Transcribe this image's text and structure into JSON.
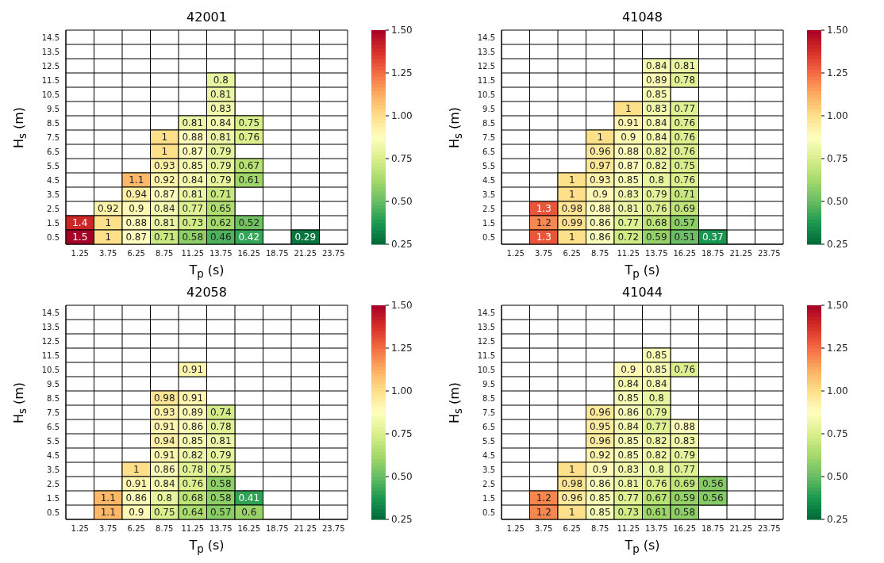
{
  "chart_data": [
    {
      "type": "heatmap",
      "title": "42001",
      "xlabel": "T$_{p}$ (s)",
      "ylabel": "H$_{s}$ (m)",
      "categories": [
        "1.25",
        "3.75",
        "6.25",
        "8.75",
        "11.25",
        "13.75",
        "16.25",
        "18.75",
        "21.25",
        "23.75"
      ],
      "y_categories": [
        "14.5",
        "13.5",
        "12.5",
        "11.5",
        "10.5",
        "9.5",
        "8.5",
        "7.5",
        "6.5",
        "5.5",
        "4.5",
        "3.5",
        "2.5",
        "1.5",
        "0.5"
      ],
      "clim": [
        0.25,
        1.5
      ],
      "cticks": [
        0.25,
        {
          "value": 0.5,
          "label": "0.50"
        },
        0.75,
        {
          "value": 1,
          "label": "1.00"
        },
        1.25,
        {
          "value": 1.5,
          "label": "1.50"
        }
      ],
      "data_labels": true,
      "cells": [
        [
          null,
          null,
          null,
          null,
          null,
          null,
          null,
          null,
          null,
          null
        ],
        [
          null,
          null,
          null,
          null,
          null,
          null,
          null,
          null,
          null,
          null
        ],
        [
          null,
          null,
          null,
          null,
          null,
          null,
          null,
          null,
          null,
          null
        ],
        [
          null,
          null,
          null,
          null,
          null,
          0.8,
          null,
          null,
          null,
          null
        ],
        [
          null,
          null,
          null,
          null,
          null,
          0.81,
          null,
          null,
          null,
          null
        ],
        [
          null,
          null,
          null,
          null,
          null,
          0.83,
          null,
          null,
          null,
          null
        ],
        [
          null,
          null,
          null,
          null,
          0.81,
          0.84,
          0.75,
          null,
          null,
          null
        ],
        [
          null,
          null,
          null,
          1,
          0.88,
          0.81,
          0.76,
          null,
          null,
          null
        ],
        [
          null,
          null,
          null,
          1,
          0.87,
          0.79,
          null,
          null,
          null,
          null
        ],
        [
          null,
          null,
          null,
          0.93,
          0.85,
          0.79,
          0.67,
          null,
          null,
          null
        ],
        [
          null,
          null,
          1.1,
          0.92,
          0.84,
          0.79,
          0.61,
          null,
          null,
          null
        ],
        [
          null,
          null,
          0.94,
          0.87,
          0.81,
          0.71,
          null,
          null,
          null,
          null
        ],
        [
          null,
          0.92,
          0.9,
          0.84,
          0.77,
          0.65,
          null,
          null,
          null,
          null
        ],
        [
          1.4,
          1,
          0.88,
          0.81,
          0.73,
          0.62,
          0.52,
          null,
          null,
          null
        ],
        [
          1.5,
          1,
          0.87,
          0.71,
          0.58,
          0.46,
          0.42,
          null,
          0.29,
          null
        ]
      ]
    },
    {
      "type": "heatmap",
      "title": "41048",
      "xlabel": "T$_{p}$ (s)",
      "ylabel": "H$_{s}$ (m)",
      "categories": [
        "1.25",
        "3.75",
        "6.25",
        "8.75",
        "11.25",
        "13.75",
        "16.25",
        "18.75",
        "21.25",
        "23.75"
      ],
      "y_categories": [
        "14.5",
        "13.5",
        "12.5",
        "11.5",
        "10.5",
        "9.5",
        "8.5",
        "7.5",
        "6.5",
        "5.5",
        "4.5",
        "3.5",
        "2.5",
        "1.5",
        "0.5"
      ],
      "clim": [
        0.25,
        1.5
      ],
      "cticks": [
        0.25,
        {
          "value": 0.5,
          "label": "0.50"
        },
        0.75,
        {
          "value": 1,
          "label": "1.00"
        },
        1.25,
        {
          "value": 1.5,
          "label": "1.50"
        }
      ],
      "data_labels": true,
      "cells": [
        [
          null,
          null,
          null,
          null,
          null,
          null,
          null,
          null,
          null,
          null
        ],
        [
          null,
          null,
          null,
          null,
          null,
          null,
          null,
          null,
          null,
          null
        ],
        [
          null,
          null,
          null,
          null,
          null,
          0.84,
          0.81,
          null,
          null,
          null
        ],
        [
          null,
          null,
          null,
          null,
          null,
          0.89,
          0.78,
          null,
          null,
          null
        ],
        [
          null,
          null,
          null,
          null,
          null,
          0.85,
          null,
          null,
          null,
          null
        ],
        [
          null,
          null,
          null,
          null,
          1,
          0.83,
          0.77,
          null,
          null,
          null
        ],
        [
          null,
          null,
          null,
          null,
          0.91,
          0.84,
          0.76,
          null,
          null,
          null
        ],
        [
          null,
          null,
          null,
          1,
          0.9,
          0.84,
          0.76,
          null,
          null,
          null
        ],
        [
          null,
          null,
          null,
          0.96,
          0.88,
          0.82,
          0.76,
          null,
          null,
          null
        ],
        [
          null,
          null,
          null,
          0.97,
          0.87,
          0.82,
          0.75,
          null,
          null,
          null
        ],
        [
          null,
          null,
          1,
          0.93,
          0.85,
          0.8,
          0.76,
          null,
          null,
          null
        ],
        [
          null,
          null,
          1,
          0.9,
          0.83,
          0.79,
          0.71,
          null,
          null,
          null
        ],
        [
          null,
          1.3,
          0.98,
          0.88,
          0.81,
          0.76,
          0.69,
          null,
          null,
          null
        ],
        [
          null,
          1.2,
          0.99,
          0.86,
          0.77,
          0.68,
          0.57,
          null,
          null,
          null
        ],
        [
          null,
          1.3,
          1,
          0.86,
          0.72,
          0.59,
          0.51,
          0.37,
          null,
          null
        ]
      ]
    },
    {
      "type": "heatmap",
      "title": "42058",
      "xlabel": "T$_{p}$ (s)",
      "ylabel": "H$_{s}$ (m)",
      "categories": [
        "1.25",
        "3.75",
        "6.25",
        "8.75",
        "11.25",
        "13.75",
        "16.25",
        "18.75",
        "21.25",
        "23.75"
      ],
      "y_categories": [
        "14.5",
        "13.5",
        "12.5",
        "11.5",
        "10.5",
        "9.5",
        "8.5",
        "7.5",
        "6.5",
        "5.5",
        "4.5",
        "3.5",
        "2.5",
        "1.5",
        "0.5"
      ],
      "clim": [
        0.25,
        1.5
      ],
      "cticks": [
        0.25,
        {
          "value": 0.5,
          "label": "0.50"
        },
        0.75,
        {
          "value": 1,
          "label": "1.00"
        },
        1.25,
        {
          "value": 1.5,
          "label": "1.50"
        }
      ],
      "data_labels": true,
      "cells": [
        [
          null,
          null,
          null,
          null,
          null,
          null,
          null,
          null,
          null,
          null
        ],
        [
          null,
          null,
          null,
          null,
          null,
          null,
          null,
          null,
          null,
          null
        ],
        [
          null,
          null,
          null,
          null,
          null,
          null,
          null,
          null,
          null,
          null
        ],
        [
          null,
          null,
          null,
          null,
          null,
          null,
          null,
          null,
          null,
          null
        ],
        [
          null,
          null,
          null,
          null,
          0.91,
          null,
          null,
          null,
          null,
          null
        ],
        [
          null,
          null,
          null,
          null,
          null,
          null,
          null,
          null,
          null,
          null
        ],
        [
          null,
          null,
          null,
          0.98,
          0.91,
          null,
          null,
          null,
          null,
          null
        ],
        [
          null,
          null,
          null,
          0.93,
          0.89,
          0.74,
          null,
          null,
          null,
          null
        ],
        [
          null,
          null,
          null,
          0.91,
          0.86,
          0.78,
          null,
          null,
          null,
          null
        ],
        [
          null,
          null,
          null,
          0.94,
          0.85,
          0.81,
          null,
          null,
          null,
          null
        ],
        [
          null,
          null,
          null,
          0.91,
          0.82,
          0.79,
          null,
          null,
          null,
          null
        ],
        [
          null,
          null,
          1,
          0.86,
          0.78,
          0.75,
          null,
          null,
          null,
          null
        ],
        [
          null,
          null,
          0.91,
          0.84,
          0.76,
          0.58,
          null,
          null,
          null,
          null
        ],
        [
          null,
          1.1,
          0.86,
          0.8,
          0.68,
          0.58,
          0.41,
          null,
          null,
          null
        ],
        [
          null,
          1.1,
          0.9,
          0.75,
          0.64,
          0.57,
          0.6,
          null,
          null,
          null
        ]
      ]
    },
    {
      "type": "heatmap",
      "title": "41044",
      "xlabel": "T$_{p}$ (s)",
      "ylabel": "H$_{s}$ (m)",
      "categories": [
        "1.25",
        "3.75",
        "6.25",
        "8.75",
        "11.25",
        "13.75",
        "16.25",
        "18.75",
        "21.25",
        "23.75"
      ],
      "y_categories": [
        "14.5",
        "13.5",
        "12.5",
        "11.5",
        "10.5",
        "9.5",
        "8.5",
        "7.5",
        "6.5",
        "5.5",
        "4.5",
        "3.5",
        "2.5",
        "1.5",
        "0.5"
      ],
      "clim": [
        0.25,
        1.5
      ],
      "cticks": [
        0.25,
        {
          "value": 0.5,
          "label": "0.50"
        },
        0.75,
        {
          "value": 1,
          "label": "1.00"
        },
        1.25,
        {
          "value": 1.5,
          "label": "1.50"
        }
      ],
      "data_labels": true,
      "cells": [
        [
          null,
          null,
          null,
          null,
          null,
          null,
          null,
          null,
          null,
          null
        ],
        [
          null,
          null,
          null,
          null,
          null,
          null,
          null,
          null,
          null,
          null
        ],
        [
          null,
          null,
          null,
          null,
          null,
          null,
          null,
          null,
          null,
          null
        ],
        [
          null,
          null,
          null,
          null,
          null,
          0.85,
          null,
          null,
          null,
          null
        ],
        [
          null,
          null,
          null,
          null,
          0.9,
          0.85,
          0.76,
          null,
          null,
          null
        ],
        [
          null,
          null,
          null,
          null,
          0.84,
          0.84,
          null,
          null,
          null,
          null
        ],
        [
          null,
          null,
          null,
          null,
          0.85,
          0.8,
          null,
          null,
          null,
          null
        ],
        [
          null,
          null,
          null,
          0.96,
          0.86,
          0.79,
          null,
          null,
          null,
          null
        ],
        [
          null,
          null,
          null,
          0.95,
          0.84,
          0.77,
          0.88,
          null,
          null,
          null
        ],
        [
          null,
          null,
          null,
          0.96,
          0.85,
          0.82,
          0.83,
          null,
          null,
          null
        ],
        [
          null,
          null,
          null,
          0.92,
          0.85,
          0.82,
          0.79,
          null,
          null,
          null
        ],
        [
          null,
          null,
          1,
          0.9,
          0.83,
          0.8,
          0.77,
          null,
          null,
          null
        ],
        [
          null,
          null,
          0.98,
          0.86,
          0.81,
          0.76,
          0.69,
          0.56,
          null,
          null
        ],
        [
          null,
          1.2,
          0.96,
          0.85,
          0.77,
          0.67,
          0.59,
          0.56,
          null,
          null
        ],
        [
          null,
          1.2,
          1,
          0.85,
          0.73,
          0.61,
          0.58,
          null,
          null,
          null
        ]
      ]
    }
  ]
}
